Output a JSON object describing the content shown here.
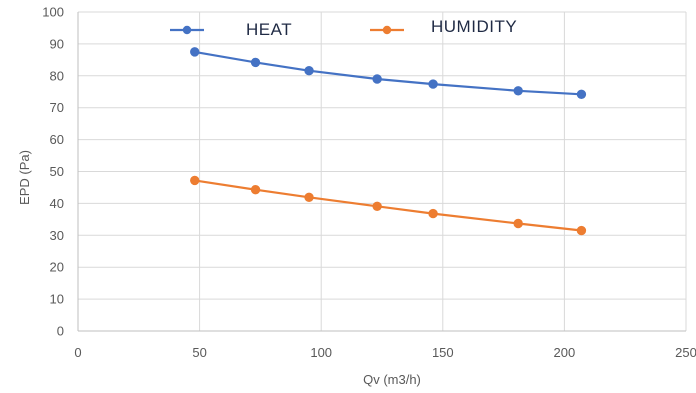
{
  "chart_data": {
    "type": "line",
    "title": "",
    "xlabel": "Qv (m3/h)",
    "ylabel": "EPD (Pa)",
    "xlim": [
      0,
      250
    ],
    "ylim": [
      0,
      100
    ],
    "x_ticks": [
      0,
      50,
      100,
      150,
      200,
      250
    ],
    "y_ticks": [
      0,
      10,
      20,
      30,
      40,
      50,
      60,
      70,
      80,
      90,
      100
    ],
    "grid": true,
    "legend_position": "top",
    "series": [
      {
        "name": "HEAT",
        "color": "#4472C4",
        "x": [
          48,
          73,
          95,
          123,
          146,
          181,
          207
        ],
        "y": [
          87.5,
          84.2,
          81.6,
          79.0,
          77.4,
          75.3,
          74.2
        ]
      },
      {
        "name": "HUMIDITY",
        "color": "#ED7D31",
        "x": [
          48,
          73,
          95,
          123,
          146,
          181,
          207
        ],
        "y": [
          47.2,
          44.3,
          41.9,
          39.1,
          36.8,
          33.7,
          31.5
        ]
      }
    ]
  }
}
